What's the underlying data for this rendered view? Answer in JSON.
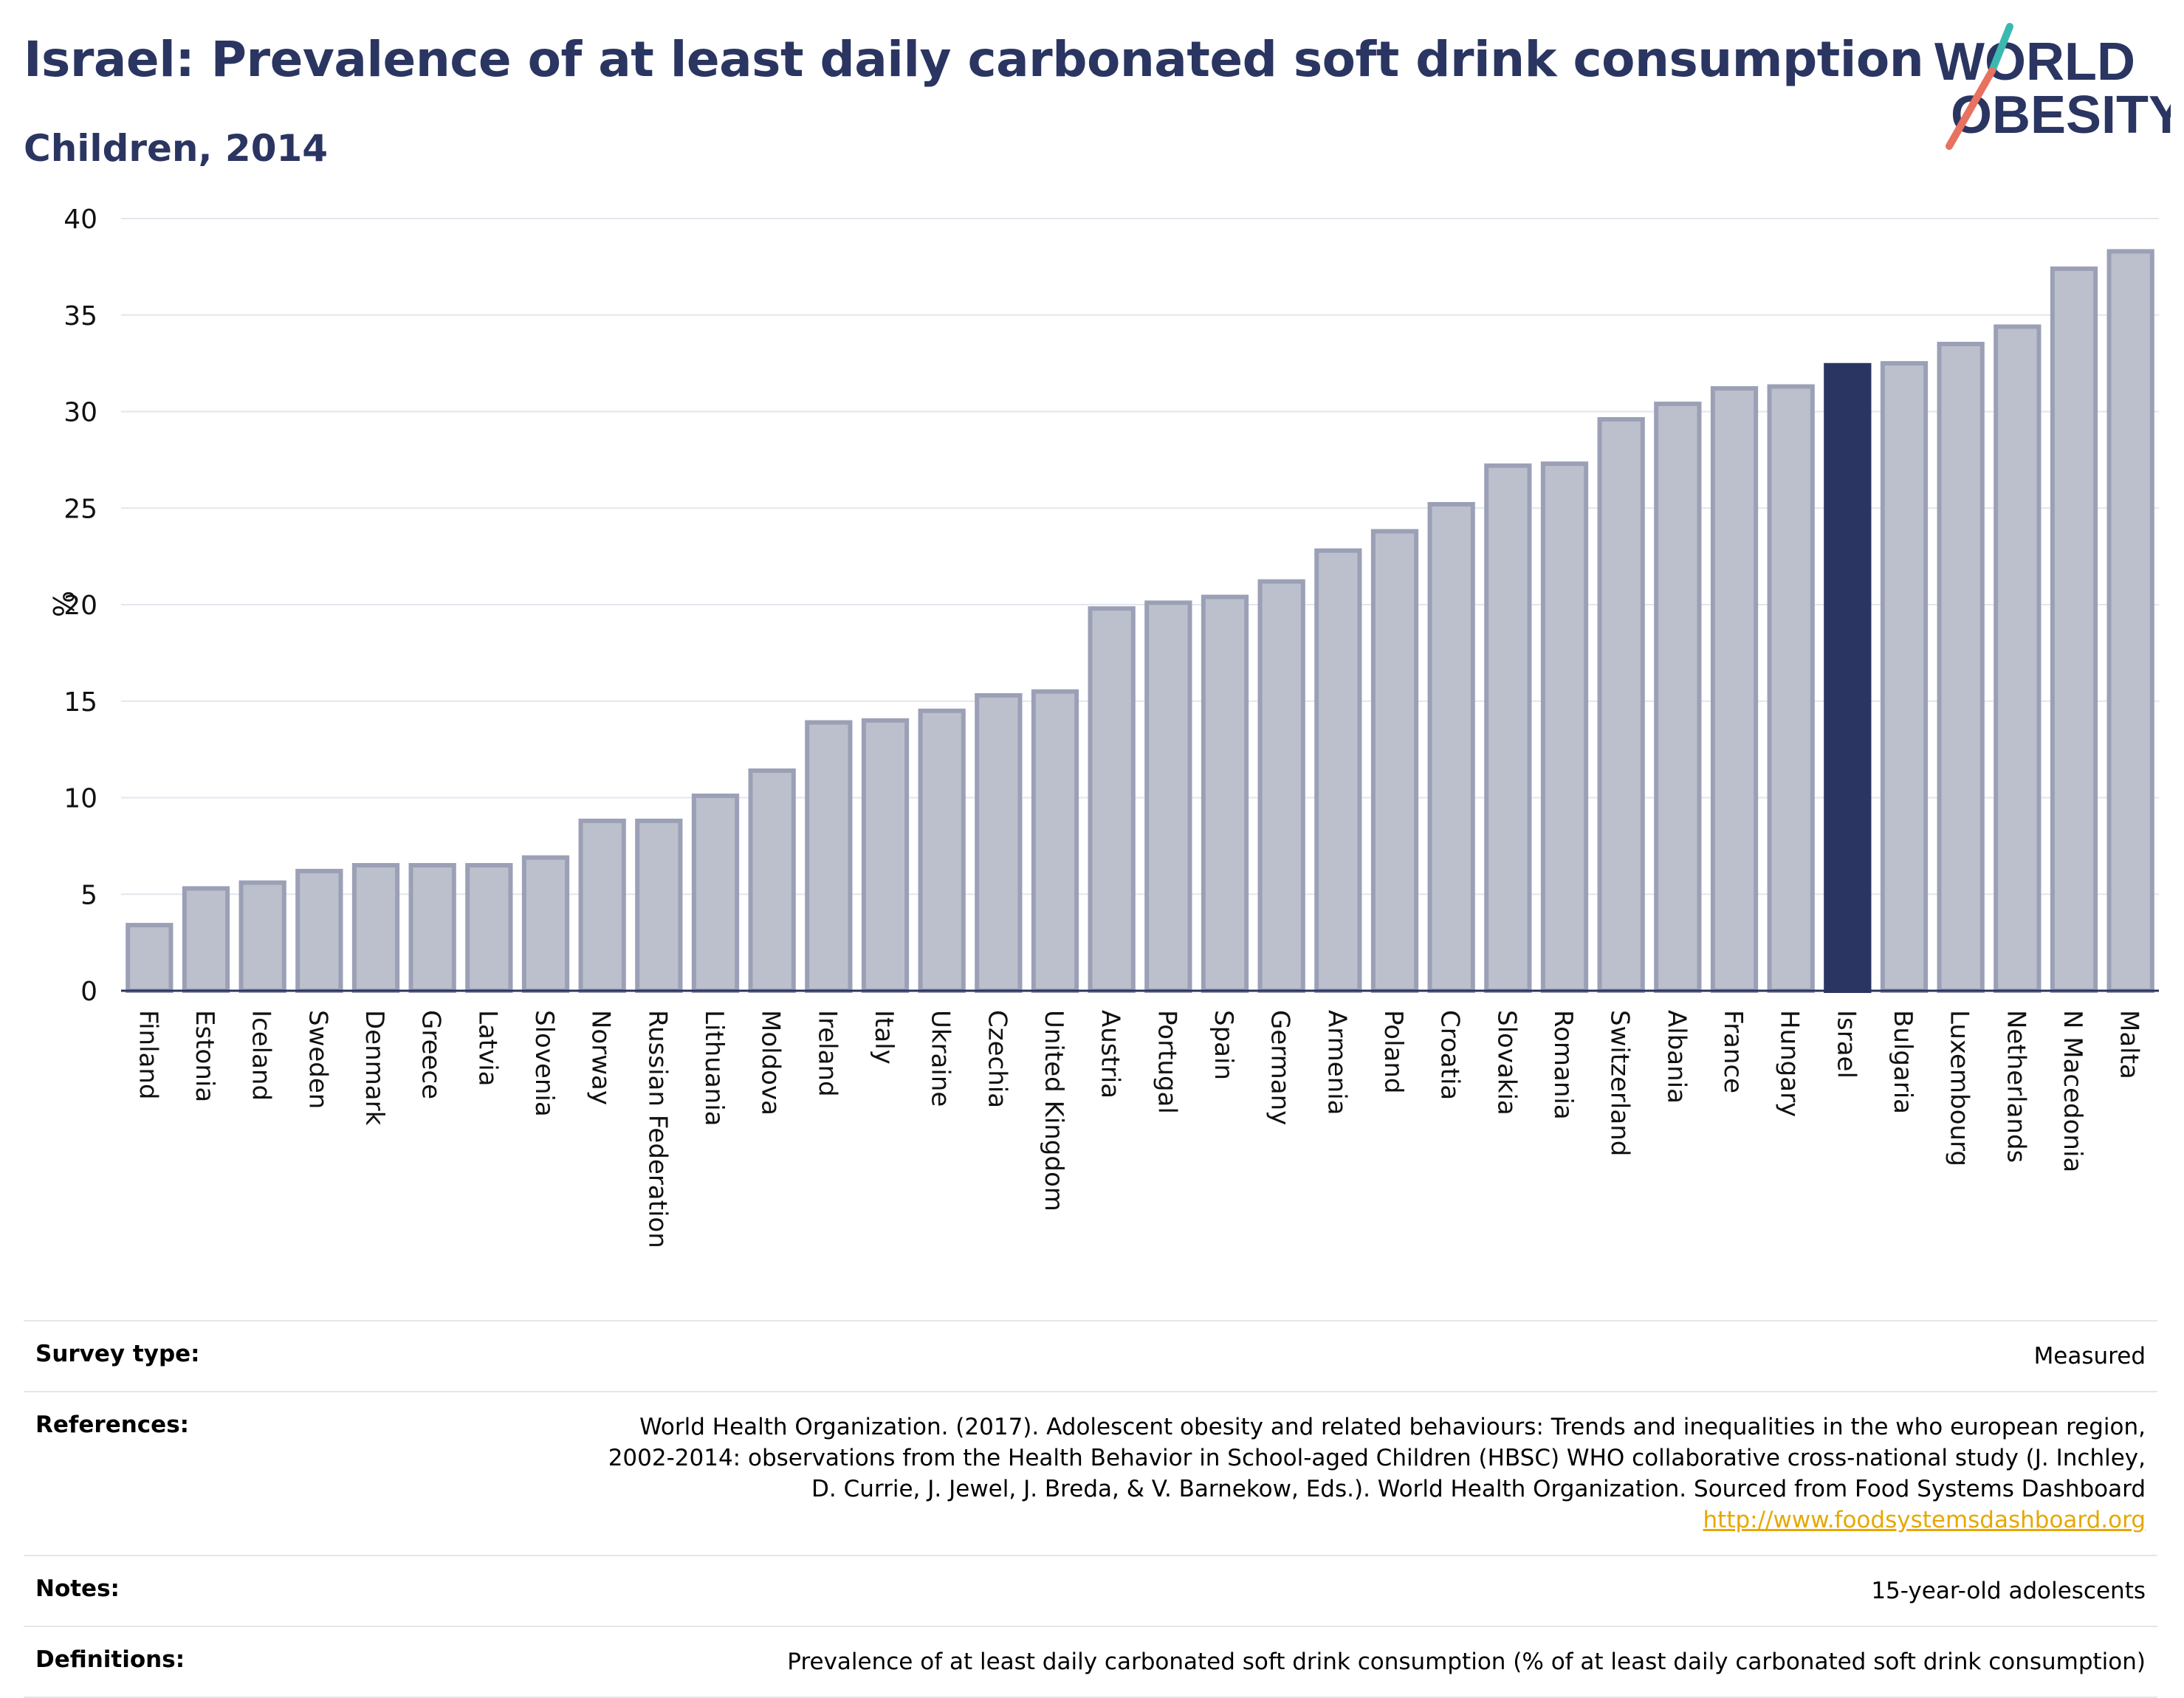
{
  "title": "Israel: Prevalence of at least daily carbonated soft drink consumption",
  "subtitle": "Children, 2014",
  "logo": {
    "line1": "WORLD",
    "line2": "OBESITY"
  },
  "colors": {
    "highlight": "#2a3561",
    "bar_fill": "#bcc0cc",
    "bar_stroke": "#9ba0b6",
    "title": "#2a3561"
  },
  "chart_data": {
    "type": "bar",
    "ylabel": "%",
    "ylim": [
      0,
      40
    ],
    "yticks": [
      0,
      5,
      10,
      15,
      20,
      25,
      30,
      35,
      40
    ],
    "grid": true,
    "highlight": "Israel",
    "categories": [
      "Finland",
      "Estonia",
      "Iceland",
      "Sweden",
      "Denmark",
      "Greece",
      "Latvia",
      "Slovenia",
      "Norway",
      "Russian Federation",
      "Lithuania",
      "Moldova",
      "Ireland",
      "Italy",
      "Ukraine",
      "Czechia",
      "United Kingdom",
      "Austria",
      "Portugal",
      "Spain",
      "Germany",
      "Armenia",
      "Poland",
      "Croatia",
      "Slovakia",
      "Romania",
      "Switzerland",
      "Albania",
      "France",
      "Hungary",
      "Israel",
      "Bulgaria",
      "Luxembourg",
      "Netherlands",
      "N Macedonia",
      "Malta"
    ],
    "values": [
      3.4,
      5.3,
      5.6,
      6.2,
      6.5,
      6.5,
      6.5,
      6.9,
      8.8,
      8.8,
      10.1,
      11.4,
      13.9,
      14.0,
      14.5,
      15.3,
      15.5,
      19.8,
      20.1,
      20.4,
      21.2,
      22.8,
      23.8,
      25.2,
      27.2,
      27.3,
      29.6,
      30.4,
      31.2,
      31.3,
      32.4,
      32.5,
      33.5,
      34.4,
      37.4,
      38.3
    ]
  },
  "info": {
    "survey_type": {
      "label": "Survey type:",
      "value": "Measured"
    },
    "references": {
      "label": "References:",
      "value": "World Health Organization. (2017). Adolescent obesity and related behaviours: Trends and inequalities in the who european region, 2002-2014: observations from the Health Behavior in School-aged Children (HBSC) WHO collaborative cross-national study (J. Inchley, D. Currie, J. Jewel, J. Breda, & V. Barnekow, Eds.). World Health Organization. Sourced from Food Systems Dashboard",
      "link": "http://www.foodsystemsdashboard.org"
    },
    "notes": {
      "label": "Notes:",
      "value": "15-year-old adolescents"
    },
    "definitions": {
      "label": "Definitions:",
      "value": "Prevalence of at least daily carbonated soft drink consumption (% of at least daily carbonated soft drink consumption)"
    }
  }
}
